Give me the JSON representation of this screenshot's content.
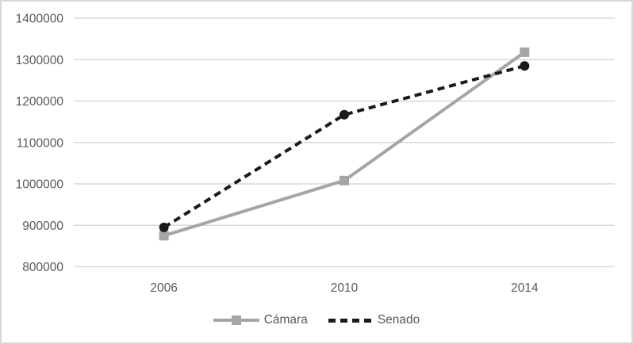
{
  "chart_data": {
    "type": "line",
    "categories": [
      "2006",
      "2010",
      "2014"
    ],
    "series": [
      {
        "name": "Cámara",
        "values": [
          875000,
          1008000,
          1318000
        ],
        "color": "#A5A5A5",
        "marker": "square",
        "dash": "solid"
      },
      {
        "name": "Senado",
        "values": [
          895000,
          1167000,
          1285000
        ],
        "color": "#1A1A1A",
        "marker": "circle",
        "dash": "dashed"
      }
    ],
    "title": "",
    "xlabel": "",
    "ylabel": "",
    "ylim": [
      800000,
      1400000
    ],
    "ytick_step": 100000,
    "yticks": [
      "800000",
      "900000",
      "1000000",
      "1100000",
      "1200000",
      "1300000",
      "1400000"
    ],
    "grid": true,
    "legend_position": "bottom"
  },
  "colors": {
    "grid": "#D9D9D9",
    "axis_text": "#595959",
    "border": "#D9D9D9",
    "background": "#FFFFFF"
  }
}
